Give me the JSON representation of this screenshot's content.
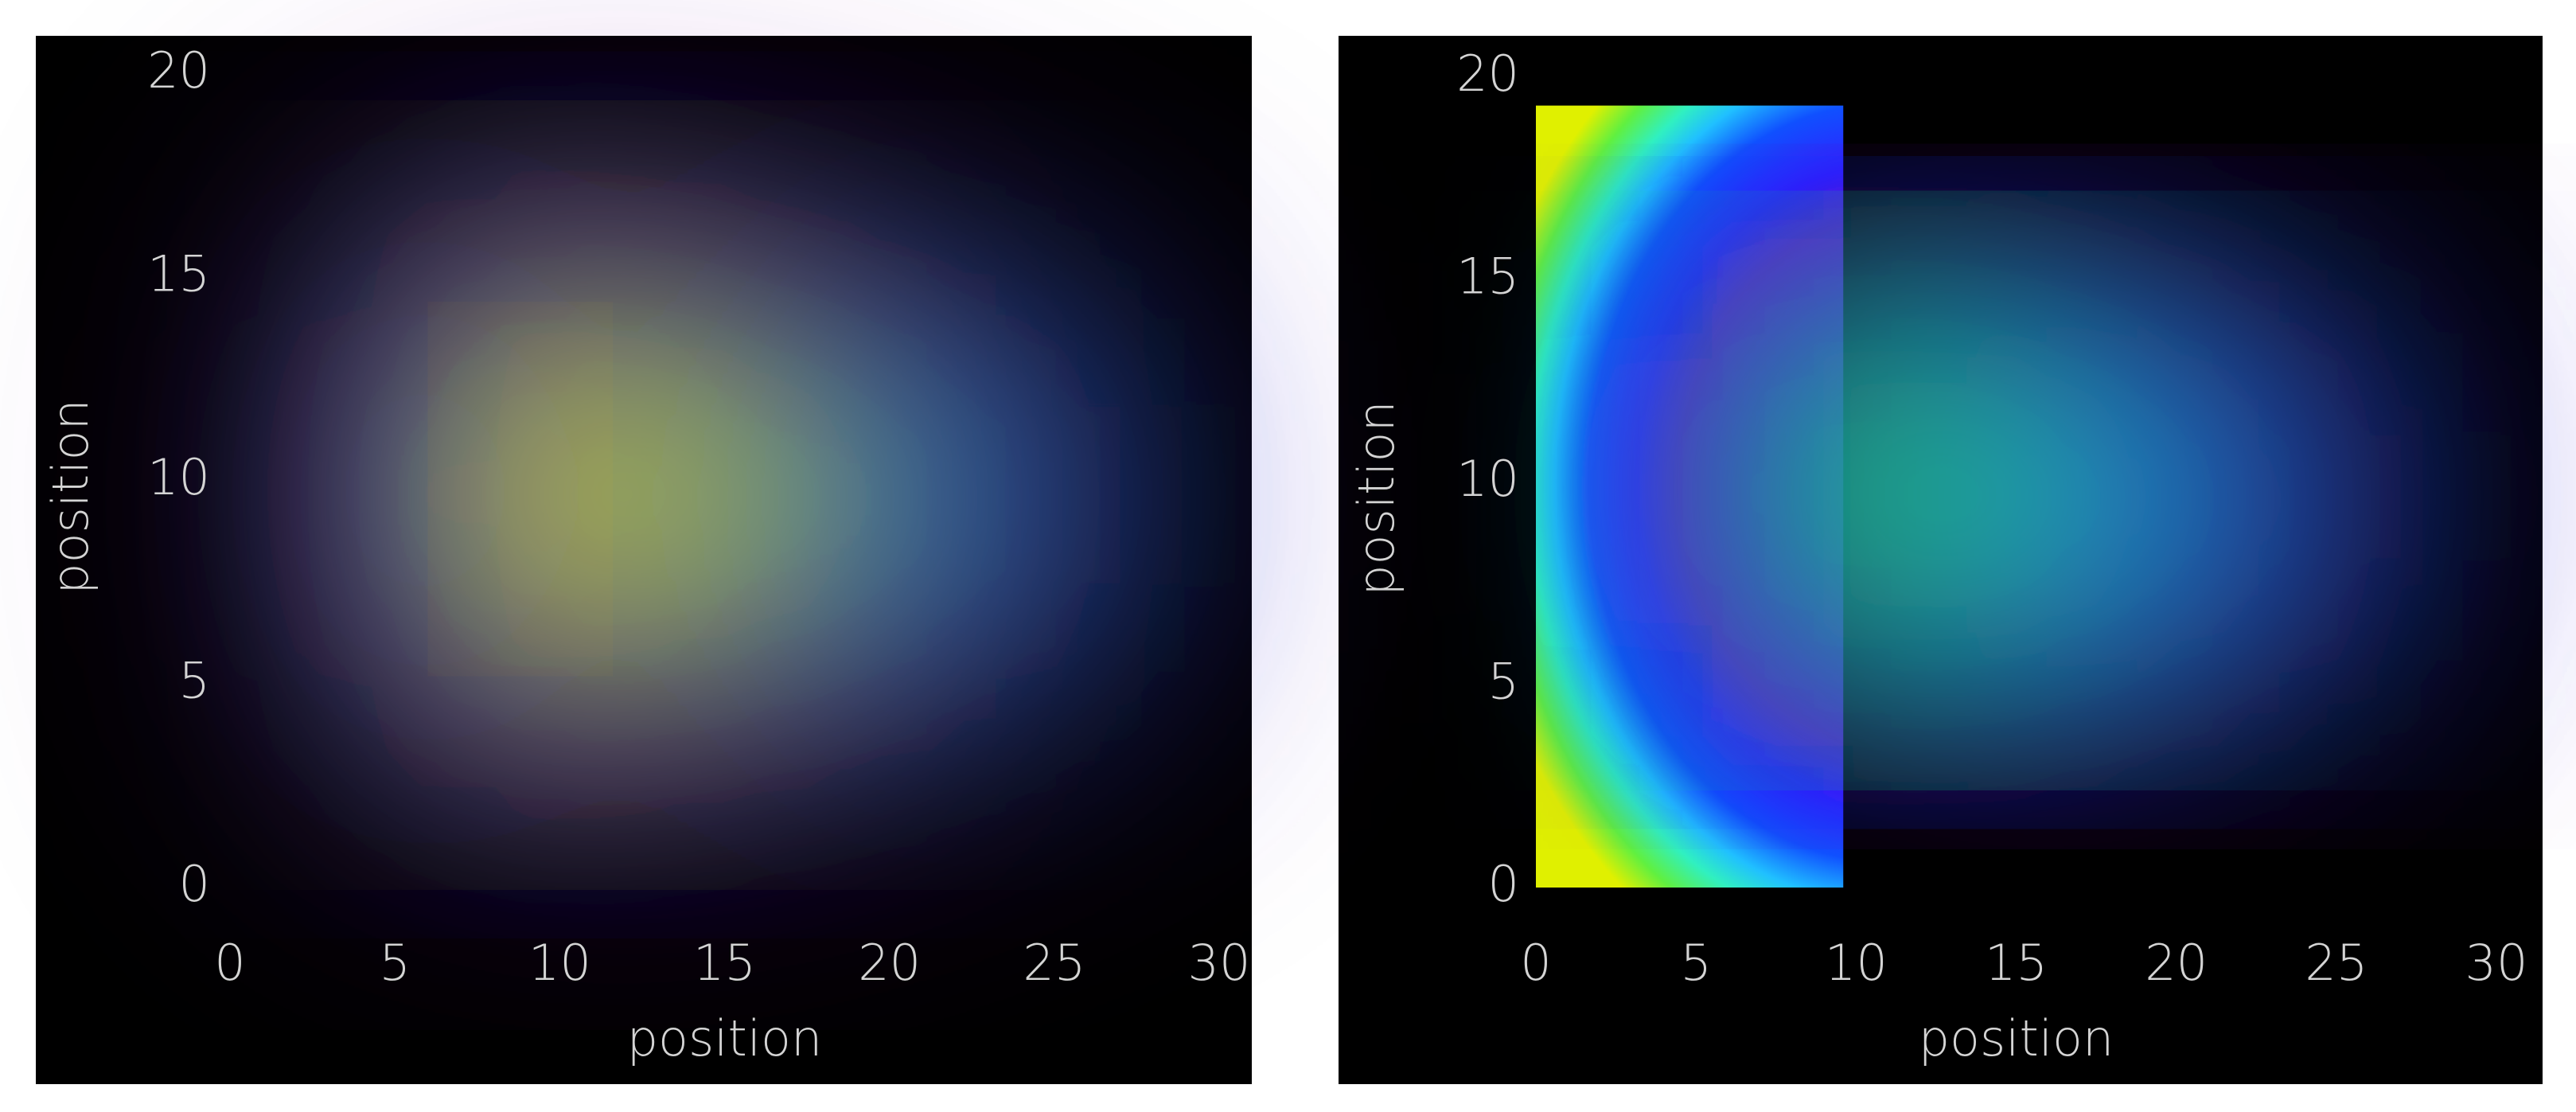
{
  "chart_data": [
    {
      "type": "heatmap",
      "xlabel": "position",
      "ylabel": "position",
      "xlim": [
        0,
        30
      ],
      "ylim": [
        0,
        20
      ],
      "xticks": [
        0,
        5,
        10,
        15,
        20,
        25,
        30
      ],
      "yticks": [
        0,
        5,
        10,
        15,
        20
      ]
    },
    {
      "type": "heatmap",
      "xlabel": "position",
      "ylabel": "position",
      "xlim": [
        0,
        30
      ],
      "ylim": [
        0,
        20
      ],
      "xticks": [
        0,
        5,
        10,
        15,
        20,
        25,
        30
      ],
      "yticks": [
        0,
        5,
        10,
        15,
        20
      ]
    }
  ]
}
